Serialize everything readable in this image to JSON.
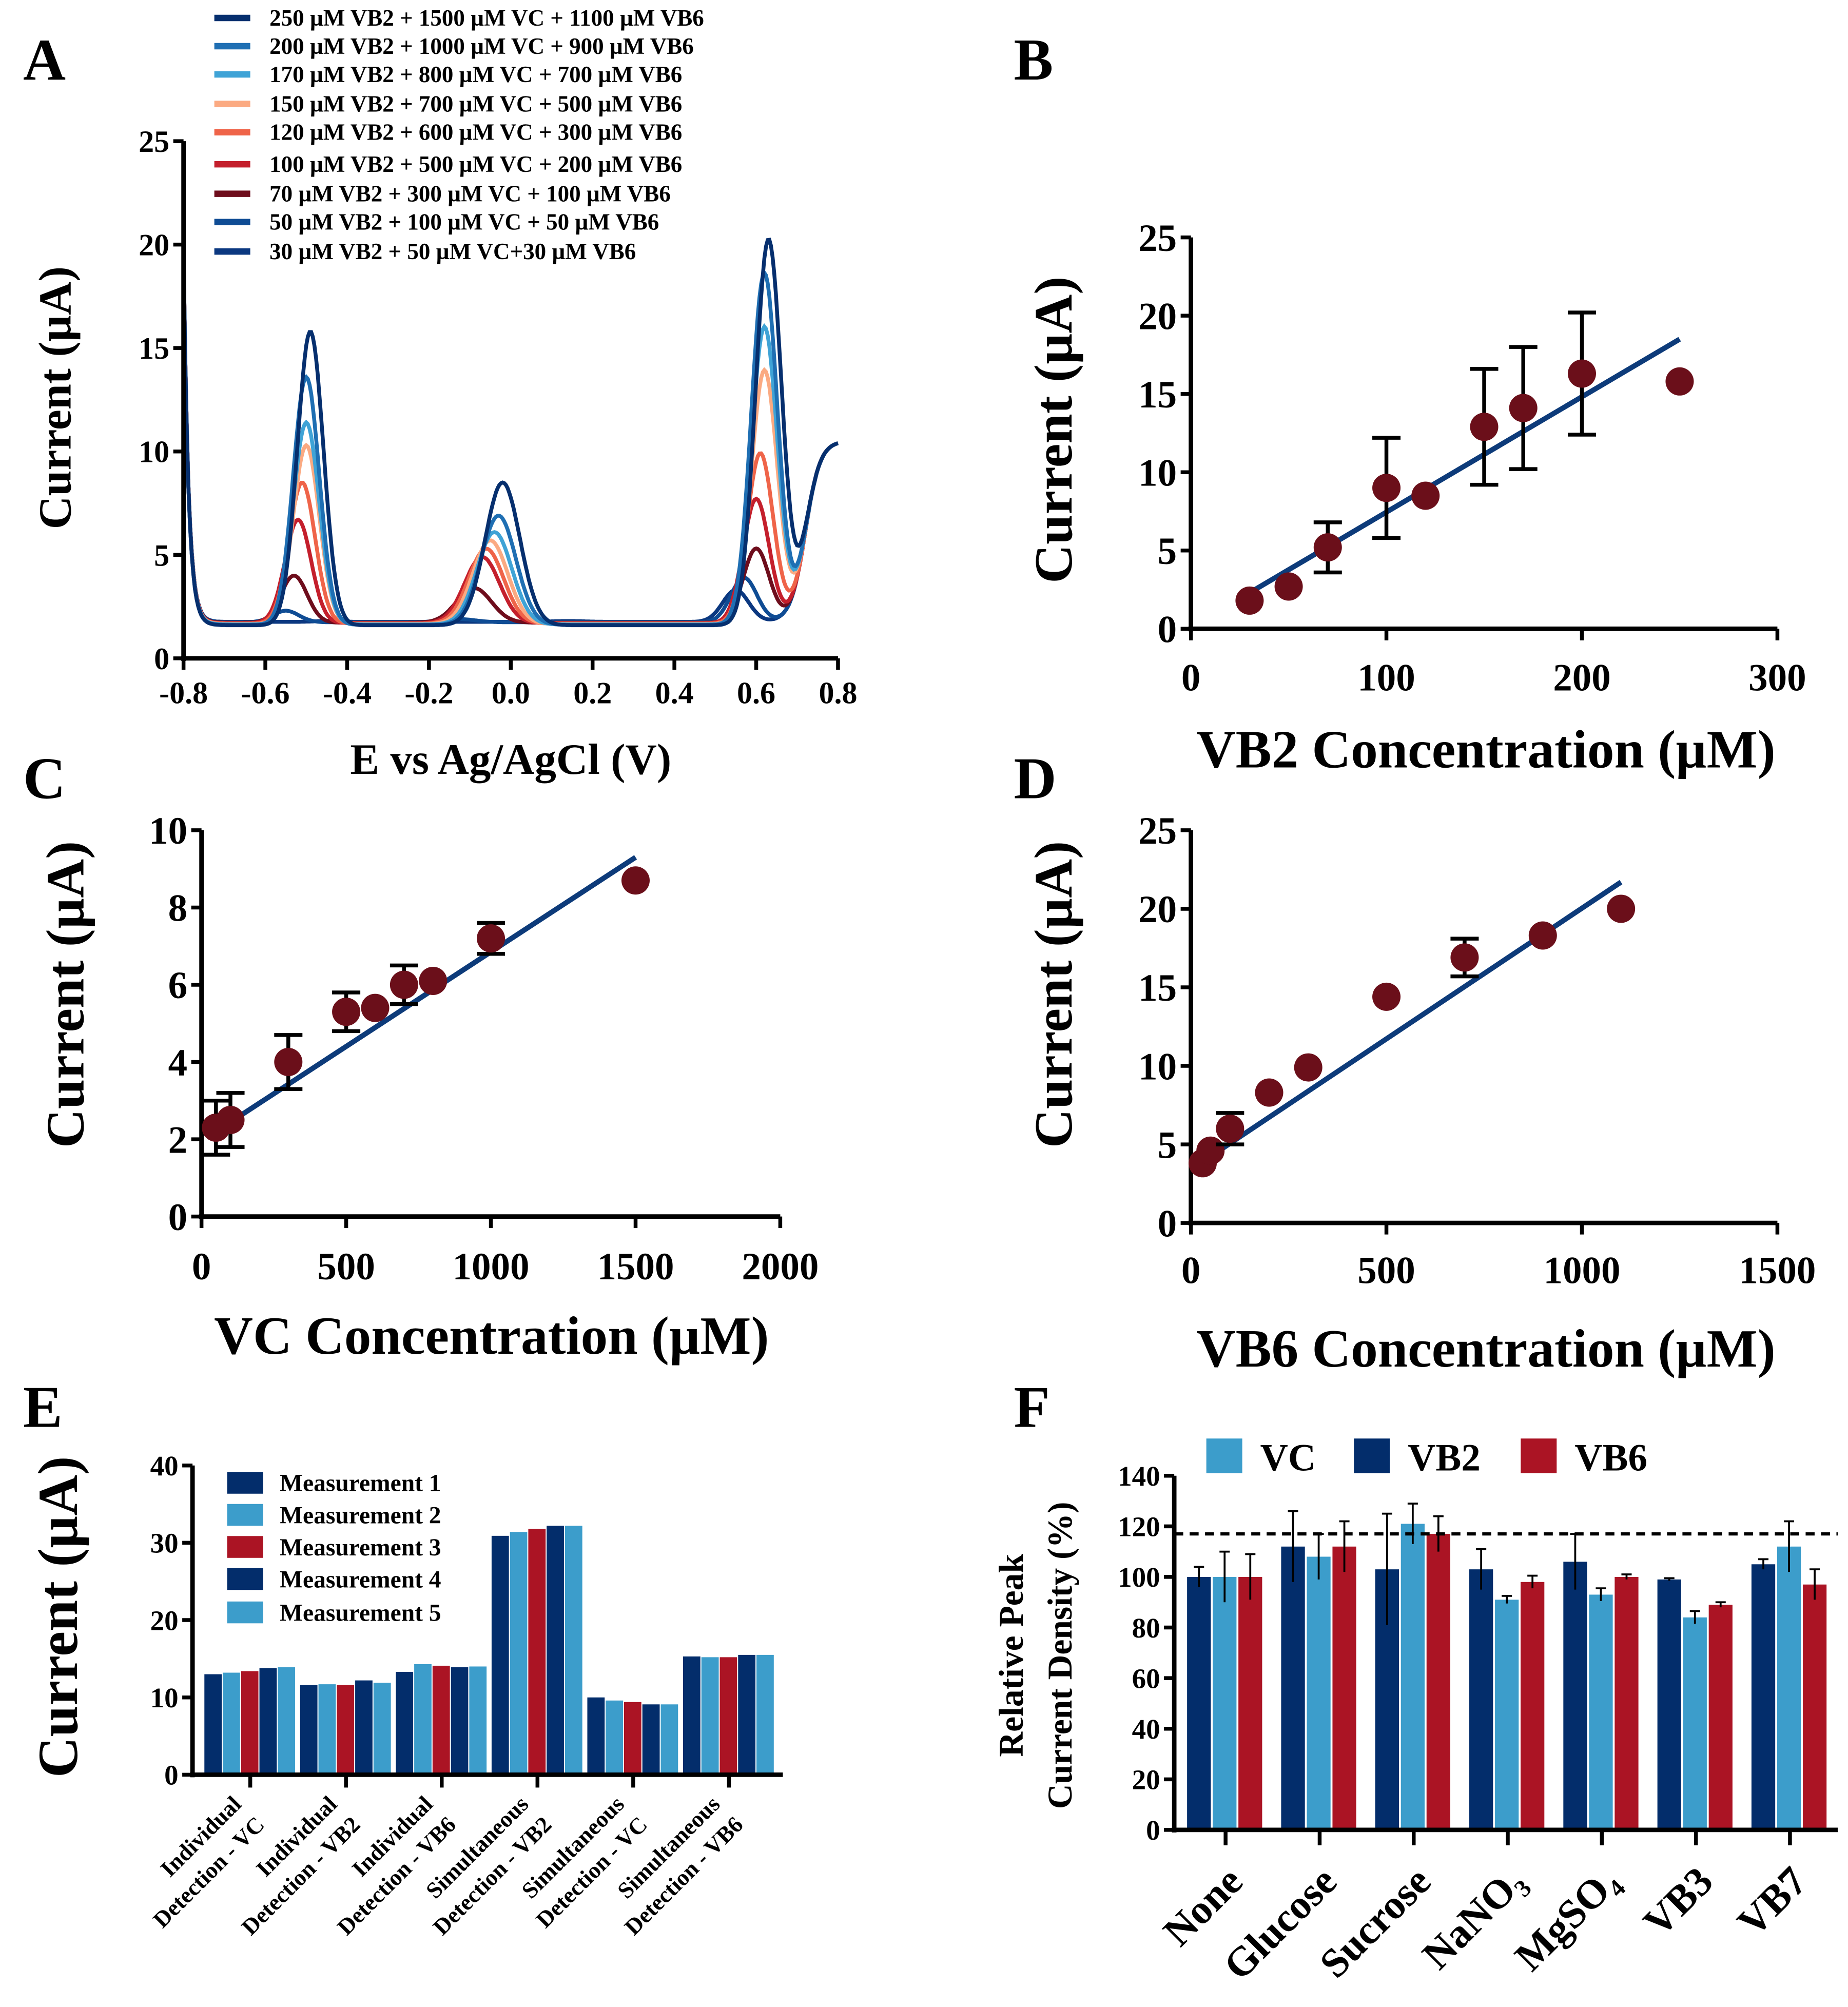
{
  "panel_labels": [
    "A",
    "B",
    "C",
    "D",
    "E",
    "F"
  ],
  "colors": {
    "dark_blue": "#032d6b",
    "light_blue": "#3c9dcb",
    "red": "#ab1424",
    "marker": "#6b0f1a",
    "fit_line": "#0d3b7a"
  },
  "chart_data": [
    {
      "panel": "A",
      "type": "line",
      "xlabel": "E vs Ag/AgCl (V)",
      "ylabel": "Current (µA)",
      "xlim": [
        -0.8,
        0.8
      ],
      "ylim": [
        0,
        25
      ],
      "xticks": [
        "-0.8",
        "-0.6",
        "-0.4",
        "-0.2",
        "0.0",
        "0.2",
        "0.4",
        "0.6",
        "0.8"
      ],
      "yticks": [
        "0",
        "5",
        "10",
        "15",
        "20",
        "25"
      ],
      "legend_position": "top",
      "series": [
        {
          "name": "250 µM VB2 + 1500 µM VC + 1100 µM VB6",
          "color": "#062f6e",
          "peaks_uA": [
            15.8,
            8.5,
            20.2
          ],
          "peak_potentials_V": [
            -0.49,
            -0.02,
            0.63
          ]
        },
        {
          "name": "200 µM VB2 + 1000 µM VC + 900 µM VB6",
          "color": "#1f6fb3",
          "peaks_uA": [
            13.6,
            6.9,
            18.6
          ],
          "peak_potentials_V": [
            -0.5,
            -0.03,
            0.62
          ]
        },
        {
          "name": "170 µM VB2 + 800 µM VC + 700 µM VB6",
          "color": "#3fa3d6",
          "peaks_uA": [
            11.4,
            6.1,
            16.0
          ],
          "peak_potentials_V": [
            -0.5,
            -0.04,
            0.62
          ]
        },
        {
          "name": "150 µM VB2 + 700 µM VC + 500 µM VB6",
          "color": "#fbaa82",
          "peaks_uA": [
            10.3,
            5.7,
            13.9
          ],
          "peak_potentials_V": [
            -0.5,
            -0.05,
            0.62
          ]
        },
        {
          "name": "120 µM VB2 + 600 µM VC + 300 µM VB6",
          "color": "#ef6449",
          "peaks_uA": [
            8.5,
            5.3,
            9.9
          ],
          "peak_potentials_V": [
            -0.51,
            -0.06,
            0.61
          ]
        },
        {
          "name": "100 µM VB2 + 500 µM VC + 200 µM VB6",
          "color": "#c41f2c",
          "peaks_uA": [
            6.7,
            4.9,
            7.7
          ],
          "peak_potentials_V": [
            -0.52,
            -0.07,
            0.6
          ]
        },
        {
          "name": "70 µM VB2 + 300 µM VC + 100 µM VB6",
          "color": "#6e0d1c",
          "peaks_uA": [
            4.0,
            3.4,
            5.3
          ],
          "peak_potentials_V": [
            -0.53,
            -0.09,
            0.6
          ]
        },
        {
          "name": "50 µM VB2 + 100 µM VC + 50 µM VB6",
          "color": "#0f4c94",
          "peaks_uA": [
            2.3,
            1.9,
            3.9
          ],
          "peak_potentials_V": [
            -0.55,
            -0.13,
            0.57
          ]
        },
        {
          "name": "30 µM VB2 + 50 µM VC+30 µM VB6",
          "color": "#0b3880",
          "peaks_uA": [
            1.8,
            1.8,
            3.3
          ],
          "peak_potentials_V": [
            -0.45,
            0.14,
            0.55
          ]
        }
      ]
    },
    {
      "panel": "B",
      "type": "scatter",
      "xlabel": "VB2 Concentration (µM)",
      "ylabel": "Current (µA)",
      "xlim": [
        0,
        300
      ],
      "ylim": [
        0,
        25
      ],
      "xticks": [
        "0",
        "100",
        "200",
        "300"
      ],
      "yticks": [
        "0",
        "5",
        "10",
        "15",
        "20",
        "25"
      ],
      "points": [
        [
          30,
          1.8,
          0
        ],
        [
          50,
          2.7,
          0
        ],
        [
          70,
          5.2,
          1.6
        ],
        [
          100,
          9.0,
          3.2
        ],
        [
          120,
          8.5,
          0
        ],
        [
          150,
          12.9,
          3.7
        ],
        [
          170,
          14.1,
          3.9
        ],
        [
          200,
          16.3,
          3.9
        ],
        [
          250,
          15.8,
          0
        ]
      ],
      "fit": [
        [
          30,
          2.3
        ],
        [
          250,
          18.5
        ]
      ]
    },
    {
      "panel": "C",
      "type": "scatter",
      "xlabel": "VC Concentration (µM)",
      "ylabel": "Current (µA)",
      "xlim": [
        0,
        2000
      ],
      "ylim": [
        0,
        10
      ],
      "xticks": [
        "0",
        "500",
        "1000",
        "1500",
        "2000"
      ],
      "yticks": [
        "0",
        "2",
        "4",
        "6",
        "8",
        "10"
      ],
      "points": [
        [
          50,
          2.3,
          0.7
        ],
        [
          100,
          2.5,
          0.7
        ],
        [
          300,
          4.0,
          0.7
        ],
        [
          500,
          5.3,
          0.5
        ],
        [
          600,
          5.4,
          0
        ],
        [
          700,
          6.0,
          0.5
        ],
        [
          800,
          6.1,
          0
        ],
        [
          1000,
          7.2,
          0.4
        ],
        [
          1500,
          8.7,
          0
        ]
      ],
      "fit": [
        [
          50,
          2.2
        ],
        [
          1500,
          9.3
        ]
      ]
    },
    {
      "panel": "D",
      "type": "scatter",
      "xlabel": "VB6 Concentration (µM)",
      "ylabel": "Current (µA)",
      "xlim": [
        0,
        1500
      ],
      "ylim": [
        0,
        25
      ],
      "xticks": [
        "0",
        "500",
        "1000",
        "1500"
      ],
      "yticks": [
        "0",
        "5",
        "10",
        "15",
        "20",
        "25"
      ],
      "points": [
        [
          30,
          3.8,
          0
        ],
        [
          50,
          4.6,
          0
        ],
        [
          100,
          6.0,
          1.0
        ],
        [
          200,
          8.3,
          0
        ],
        [
          300,
          9.9,
          0
        ],
        [
          500,
          14.4,
          0
        ],
        [
          700,
          16.9,
          1.2
        ],
        [
          900,
          18.3,
          0
        ],
        [
          1100,
          20.0,
          0
        ]
      ],
      "fit": [
        [
          30,
          3.9
        ],
        [
          1100,
          21.7
        ]
      ]
    },
    {
      "panel": "E",
      "type": "bar",
      "ylabel": "Current (µA)",
      "ylim": [
        0,
        40
      ],
      "yticks": [
        "0",
        "10",
        "20",
        "30",
        "40"
      ],
      "legend_position": "top-left",
      "categories": [
        [
          "Individual",
          "Detection - VC"
        ],
        [
          "Individual",
          "Detection - VB2"
        ],
        [
          "Individual",
          "Detection - VB6"
        ],
        [
          "Simultaneous",
          "Detection - VB2"
        ],
        [
          "Simultaneous",
          "Detection - VC"
        ],
        [
          "Simultaneous",
          "Detection - VB6"
        ]
      ],
      "series": [
        {
          "name": "Measurement 1",
          "color": "#032d6b",
          "values": [
            13.0,
            11.6,
            13.3,
            30.9,
            10.0,
            15.3
          ]
        },
        {
          "name": "Measurement 2",
          "color": "#3c9dcb",
          "values": [
            13.2,
            11.7,
            14.3,
            31.4,
            9.6,
            15.2
          ]
        },
        {
          "name": "Measurement 3",
          "color": "#ab1424",
          "values": [
            13.4,
            11.6,
            14.1,
            31.8,
            9.4,
            15.2
          ]
        },
        {
          "name": "Measurement 4",
          "color": "#032d6b",
          "values": [
            13.8,
            12.2,
            13.9,
            32.2,
            9.1,
            15.5
          ]
        },
        {
          "name": "Measurement 5",
          "color": "#3c9dcb",
          "values": [
            13.9,
            11.9,
            14.0,
            32.2,
            9.1,
            15.5
          ]
        }
      ]
    },
    {
      "panel": "F",
      "type": "bar",
      "ylabel": [
        "Relative Peak",
        "Current Density (%)"
      ],
      "ylim": [
        0,
        140
      ],
      "yticks": [
        "0",
        "20",
        "40",
        "60",
        "80",
        "100",
        "120",
        "140"
      ],
      "reference_line": 117,
      "legend_position": "top",
      "legend_order": [
        "VC",
        "VB2",
        "VB6"
      ],
      "categories": [
        "None",
        "Glucose",
        "Sucrose",
        "NaNO₃",
        "MgSO₄",
        "VB3",
        "VB7"
      ],
      "series": [
        {
          "name": "VB2",
          "color": "#032d6b",
          "values": [
            100,
            112,
            103,
            103,
            106,
            99,
            105
          ],
          "errors": [
            4,
            14,
            22,
            8,
            11,
            0.5,
            2
          ]
        },
        {
          "name": "VC",
          "color": "#3c9dcb",
          "values": [
            100,
            108,
            121,
            91,
            93,
            84,
            112
          ],
          "errors": [
            10,
            9,
            8,
            1.5,
            2.5,
            2.5,
            10
          ]
        },
        {
          "name": "VB6",
          "color": "#ab1424",
          "values": [
            100,
            112,
            117,
            98,
            100,
            89,
            97
          ],
          "errors": [
            9,
            10,
            7,
            2.5,
            1,
            1,
            6
          ]
        }
      ]
    }
  ]
}
